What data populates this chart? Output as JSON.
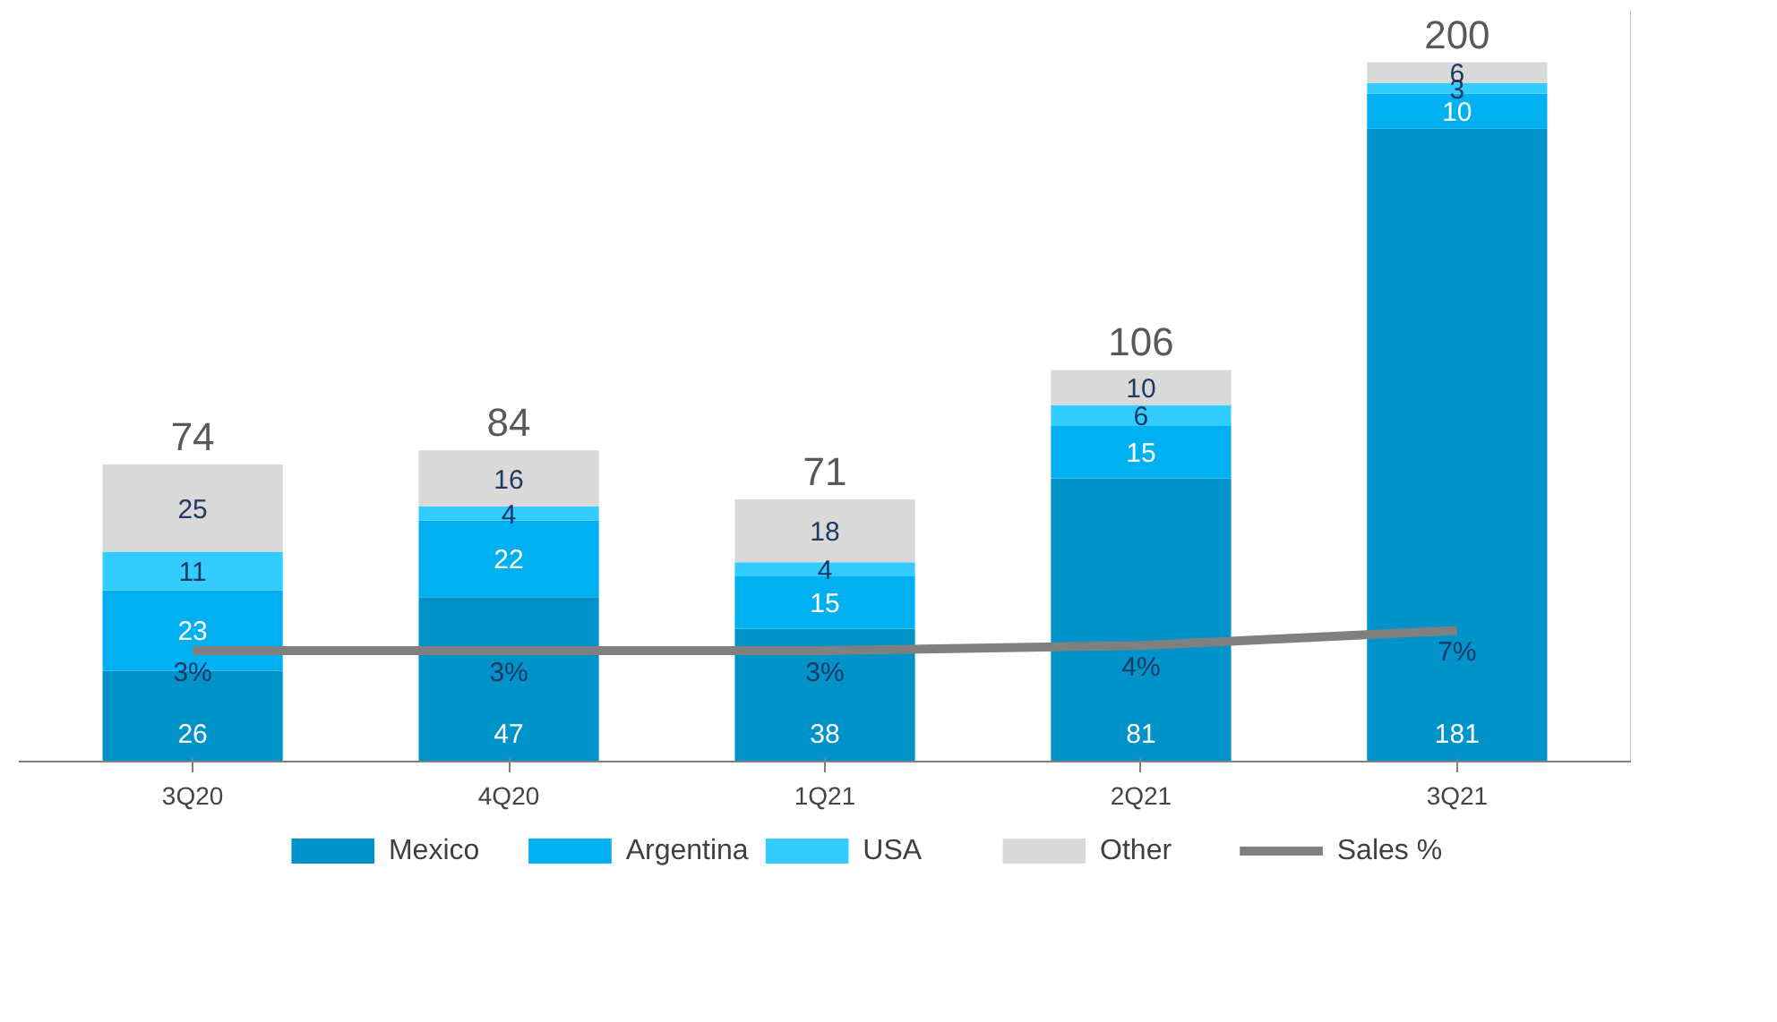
{
  "chart_data": {
    "type": "bar",
    "stacked": true,
    "categories": [
      "3Q20",
      "4Q20",
      "1Q21",
      "2Q21",
      "3Q21"
    ],
    "series": [
      {
        "name": "Mexico",
        "color": "#0093c9",
        "values": [
          26,
          47,
          38,
          81,
          181
        ]
      },
      {
        "name": "Argentina",
        "color": "#00b0f0",
        "values": [
          23,
          22,
          15,
          15,
          10
        ]
      },
      {
        "name": "USA",
        "color": "#33ccff",
        "values": [
          11,
          4,
          4,
          6,
          3
        ]
      },
      {
        "name": "Other",
        "color": "#d9d9d9",
        "values": [
          25,
          16,
          18,
          10,
          6
        ]
      },
      {
        "name": "Sales %",
        "type": "line",
        "axis": "y2",
        "color": "#808080",
        "values": [
          3,
          3,
          3,
          4,
          7
        ],
        "value_labels": [
          "3%",
          "3%",
          "3%",
          "4%",
          "7%"
        ]
      }
    ],
    "annotations": [
      {
        "text": "74",
        "x": "3Q20",
        "y": 85
      },
      {
        "text": "84",
        "x": "4Q20",
        "y": 89
      },
      {
        "text": "71",
        "x": "1Q21",
        "y": 75
      },
      {
        "text": "106",
        "x": "2Q21",
        "y": 112
      },
      {
        "text": "200",
        "x": "3Q21",
        "y": 200
      }
    ],
    "data_labels": true,
    "y2lim": [
      -19,
      130
    ],
    "tick_labels": "x",
    "grid": false,
    "legend": "bottom"
  }
}
